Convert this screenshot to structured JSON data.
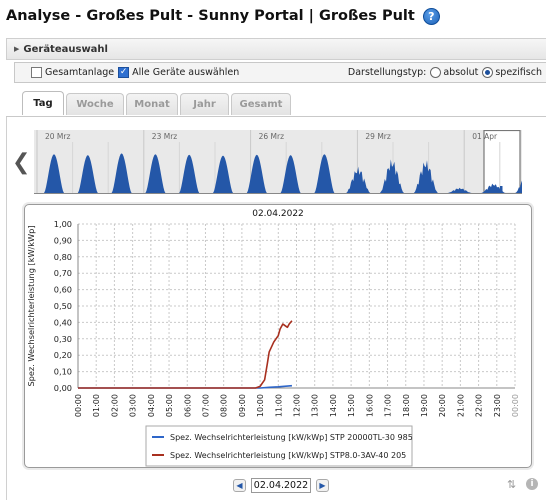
{
  "page": {
    "title": "Analyse - Großes Pult - Sunny Portal | Großes Pult",
    "help_icon": "help-icon",
    "help_glyph": "?"
  },
  "device_selection": {
    "label": "Geräteauswahl"
  },
  "options": {
    "total_plant": {
      "label": "Gesamtanlage",
      "checked": false
    },
    "all_devices": {
      "label": "Alle Geräte auswählen",
      "checked": true
    },
    "display_type": {
      "label": "Darstellungstyp:",
      "choices": [
        {
          "label": "absolut",
          "selected": false
        },
        {
          "label": "spezifisch",
          "selected": true
        }
      ]
    }
  },
  "tabs": [
    {
      "label": "Tag",
      "active": true
    },
    {
      "label": "Woche",
      "active": false
    },
    {
      "label": "Monat",
      "active": false
    },
    {
      "label": "Jahr",
      "active": false
    },
    {
      "label": "Gesamt",
      "active": false
    }
  ],
  "overview": {
    "date_labels": [
      "20 Mrz",
      "23 Mrz",
      "26 Mrz",
      "29 Mrz",
      "01 Apr"
    ],
    "daily_peaks": [
      0.88,
      0.86,
      0.9,
      0.88,
      0.87,
      0.85,
      0.87,
      0.86,
      0.88,
      0.6,
      0.78,
      0.76,
      0.12,
      0.22,
      0.45,
      0.16
    ],
    "colors": {
      "fill": "#2457a8",
      "background": "#e9e9e9",
      "selected": "#ffffff"
    }
  },
  "chart_data": {
    "type": "line",
    "title": "02.04.2022",
    "ylabel": "Spez. Wechselrichterleistung [kW/kWp]",
    "ylim": [
      0,
      1
    ],
    "yticks": [
      "0,00",
      "0,10",
      "0,20",
      "0,30",
      "0,40",
      "0,50",
      "0,60",
      "0,70",
      "0,80",
      "0,90",
      "1,00"
    ],
    "xticks": [
      "00:00",
      "01:00",
      "02:00",
      "03:00",
      "04:00",
      "05:00",
      "06:00",
      "07:00",
      "08:00",
      "09:00",
      "10:00",
      "11:00",
      "12:00",
      "13:00",
      "14:00",
      "15:00",
      "16:00",
      "17:00",
      "18:00",
      "19:00",
      "20:00",
      "21:00",
      "22:00",
      "23:00",
      "00:00"
    ],
    "grid": true,
    "legend_position": "bottom",
    "series": [
      {
        "name": "Spez. Wechselrichterleistung [kW/kWp] STP 20000TL-30 985",
        "color": "#2e66c9",
        "x": [
          0,
          9.5,
          10.0,
          10.5,
          11.0,
          11.5,
          11.75
        ],
        "y": [
          0,
          0,
          0.0,
          0.004,
          0.007,
          0.012,
          0.014
        ]
      },
      {
        "name": "Spez. Wechselrichterleistung [kW/kWp] STP8.0-3AV-40 205",
        "color": "#a8301f",
        "x": [
          0,
          9.75,
          10.0,
          10.25,
          10.4,
          10.5,
          10.75,
          11.0,
          11.1,
          11.25,
          11.5,
          11.6,
          11.75
        ],
        "y": [
          0,
          0,
          0.01,
          0.05,
          0.15,
          0.22,
          0.28,
          0.32,
          0.36,
          0.39,
          0.37,
          0.39,
          0.41
        ]
      }
    ]
  },
  "date_navigation": {
    "current_date": "02.04.2022",
    "prev_glyph": "◀",
    "next_glyph": "▶",
    "nav_left_glyph": "❮"
  },
  "footer": {
    "zoom_icon": "zoom-icon",
    "info_icon": "info-icon",
    "info_glyph": "i"
  }
}
